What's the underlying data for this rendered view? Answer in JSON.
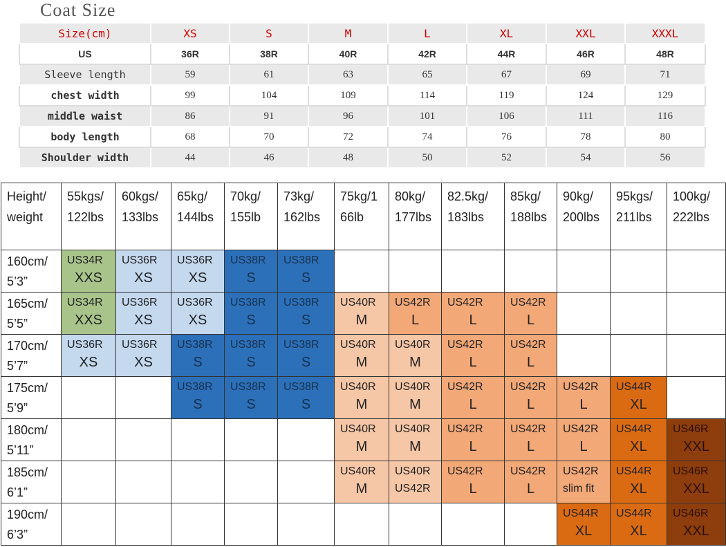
{
  "title": "Coat Size",
  "size_table": {
    "header": [
      "Size(cm)",
      "XS",
      "S",
      "M",
      "L",
      "XL",
      "XXL",
      "XXXL"
    ],
    "rows": [
      {
        "label": "US",
        "values": [
          "36R",
          "38R",
          "40R",
          "42R",
          "44R",
          "46R",
          "48R"
        ]
      },
      {
        "label": "Sleeve length",
        "values": [
          "59",
          "61",
          "63",
          "65",
          "67",
          "69",
          "71"
        ]
      },
      {
        "label": "chest width",
        "values": [
          "99",
          "104",
          "109",
          "114",
          "119",
          "124",
          "129"
        ]
      },
      {
        "label": "middle waist",
        "values": [
          "86",
          "91",
          "96",
          "101",
          "106",
          "111",
          "116"
        ]
      },
      {
        "label": "body length",
        "values": [
          "68",
          "70",
          "72",
          "74",
          "76",
          "78",
          "80"
        ]
      },
      {
        "label": "Shoulder width",
        "values": [
          "44",
          "46",
          "48",
          "50",
          "52",
          "54",
          "56"
        ]
      }
    ]
  },
  "fit_table": {
    "corner": [
      "Height/",
      "weight"
    ],
    "weights": [
      [
        "55kgs/",
        "122lbs"
      ],
      [
        "60kgs/",
        "133lbs"
      ],
      [
        "65kg/",
        "144lbs"
      ],
      [
        "70kg/",
        "155lb"
      ],
      [
        "73kg/",
        "162lbs"
      ],
      [
        "75kg/1",
        "66lb"
      ],
      [
        "80kg/",
        "177lbs"
      ],
      [
        "82.5kg/",
        "183lbs"
      ],
      [
        "85kg/",
        "188lbs"
      ],
      [
        "90kg/",
        "200lbs"
      ],
      [
        "95kgs/",
        "211lbs"
      ],
      [
        "100kg/",
        "222lbs"
      ]
    ],
    "rows": [
      {
        "height": [
          "160cm/",
          "5’3”"
        ],
        "cells": [
          {
            "us": "US34R",
            "size": "XXS",
            "color": "green"
          },
          {
            "us": "US36R",
            "size": "XS",
            "color": "lblue"
          },
          {
            "us": "US36R",
            "size": "XS",
            "color": "lblue"
          },
          {
            "us": "US38R",
            "size": "S",
            "color": "dblue"
          },
          {
            "us": "US38R",
            "size": "S",
            "color": "dblue"
          },
          null,
          null,
          null,
          null,
          null,
          null,
          null
        ]
      },
      {
        "height": [
          "165cm/",
          "5’5”"
        ],
        "cells": [
          {
            "us": "US34R",
            "size": "XXS",
            "color": "green"
          },
          {
            "us": "US36R",
            "size": "XS",
            "color": "lblue"
          },
          {
            "us": "US36R",
            "size": "XS",
            "color": "lblue"
          },
          {
            "us": "US38R",
            "size": "S",
            "color": "dblue"
          },
          {
            "us": "US38R",
            "size": "S",
            "color": "dblue"
          },
          {
            "us": "US40R",
            "size": "M",
            "color": "lorange"
          },
          {
            "us": "US42R",
            "size": "L",
            "color": "morange"
          },
          {
            "us": "US42R",
            "size": "L",
            "color": "morange"
          },
          {
            "us": "US42R",
            "size": "L",
            "color": "morange"
          },
          null,
          null,
          null
        ]
      },
      {
        "height": [
          "170cm/",
          "5’7”"
        ],
        "cells": [
          {
            "us": "US36R",
            "size": "XS",
            "color": "lblue"
          },
          {
            "us": "US36R",
            "size": "XS",
            "color": "lblue"
          },
          {
            "us": "US38R",
            "size": "S",
            "color": "dblue"
          },
          {
            "us": "US38R",
            "size": "S",
            "color": "dblue"
          },
          {
            "us": "US38R",
            "size": "S",
            "color": "dblue"
          },
          {
            "us": "US40R",
            "size": "M",
            "color": "lorange"
          },
          {
            "us": "US40R",
            "size": "M",
            "color": "lorange"
          },
          {
            "us": "US42R",
            "size": "L",
            "color": "morange"
          },
          {
            "us": "US42R",
            "size": "L",
            "color": "morange"
          },
          null,
          null,
          null
        ]
      },
      {
        "height": [
          "175cm/",
          "5’9”"
        ],
        "cells": [
          null,
          null,
          {
            "us": "US38R",
            "size": "S",
            "color": "dblue"
          },
          {
            "us": "US38R",
            "size": "S",
            "color": "dblue"
          },
          {
            "us": "US38R",
            "size": "S",
            "color": "dblue"
          },
          {
            "us": "US40R",
            "size": "M",
            "color": "lorange"
          },
          {
            "us": "US40R",
            "size": "M",
            "color": "lorange"
          },
          {
            "us": "US42R",
            "size": "L",
            "color": "morange"
          },
          {
            "us": "US42R",
            "size": "L",
            "color": "morange"
          },
          {
            "us": "US42R",
            "size": "L",
            "color": "morange"
          },
          {
            "us": "US44R",
            "size": "XL",
            "color": "dorange"
          },
          null
        ]
      },
      {
        "height": [
          "180cm/",
          "5’11”"
        ],
        "cells": [
          null,
          null,
          null,
          null,
          null,
          {
            "us": "US40R",
            "size": "M",
            "color": "lorange"
          },
          {
            "us": "US40R",
            "size": "M",
            "color": "lorange"
          },
          {
            "us": "US42R",
            "size": "L",
            "color": "morange"
          },
          {
            "us": "US42R",
            "size": "L",
            "color": "morange"
          },
          {
            "us": "US42R",
            "size": "L",
            "color": "morange"
          },
          {
            "us": "US44R",
            "size": "XL",
            "color": "dorange"
          },
          {
            "us": "US46R",
            "size": "XXL",
            "color": "brown"
          }
        ]
      },
      {
        "height": [
          "185cm/",
          "6’1”"
        ],
        "cells": [
          null,
          null,
          null,
          null,
          null,
          {
            "us": "US40R",
            "size": "M",
            "color": "lorange"
          },
          {
            "us": "US40R",
            "size": "US42R",
            "color": "lorange"
          },
          {
            "us": "US42R",
            "size": "L",
            "color": "morange"
          },
          {
            "us": "US42R",
            "size": "L",
            "color": "morange"
          },
          {
            "us": "US42R",
            "size": "slim fit",
            "color": "morange"
          },
          {
            "us": "US44R",
            "size": "XL",
            "color": "dorange"
          },
          {
            "us": "US46R",
            "size": "XXL",
            "color": "brown"
          }
        ]
      },
      {
        "height": [
          "190cm/",
          "6’3”"
        ],
        "cells": [
          null,
          null,
          null,
          null,
          null,
          null,
          null,
          null,
          null,
          {
            "us": "US44R",
            "size": "XL",
            "color": "dorange"
          },
          {
            "us": "US44R",
            "size": "XL",
            "color": "dorange"
          },
          {
            "us": "US46R",
            "size": "XXL",
            "color": "brown"
          }
        ]
      }
    ]
  }
}
